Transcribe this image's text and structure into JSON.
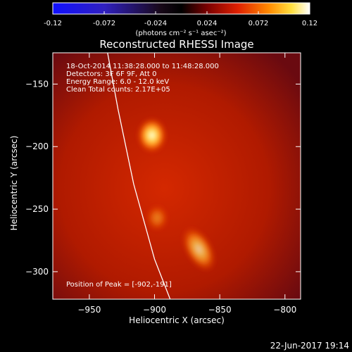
{
  "chart_data": {
    "type": "heatmap",
    "title": "Reconstructed RHESSI Image",
    "xlabel": "Heliocentric X (arcsec)",
    "ylabel": "Heliocentric Y (arcsec)",
    "xlim": [
      -978,
      -788
    ],
    "ylim": [
      -322,
      -125
    ],
    "x_ticks": [
      -950,
      -900,
      -850,
      -800
    ],
    "y_ticks": [
      -150,
      -200,
      -250,
      -300
    ],
    "colorbar": {
      "range": [
        -0.12,
        0.12
      ],
      "ticks": [
        "-0.12",
        "-0.072",
        "-0.024",
        "0.024",
        "0.072",
        "0.12"
      ],
      "label": "(photons cm⁻² s⁻¹ asec⁻²)",
      "colormap": "blue-black-red-yellow-white"
    },
    "sources": [
      {
        "x": -902,
        "y": -191,
        "level": 1.0
      },
      {
        "x": -898,
        "y": -257,
        "level": 0.55
      },
      {
        "x": -866,
        "y": -282,
        "level": 0.75
      }
    ],
    "limb_curve": [
      [
        -936,
        -125
      ],
      [
        -928,
        -170
      ],
      [
        -916,
        -230
      ],
      [
        -900,
        -290
      ],
      [
        -888,
        -322
      ]
    ],
    "info_lines": [
      "18-Oct-2014 11:38:28.000 to 11:48:28.000",
      "Detectors: 3F 6F 9F, Att 0",
      "Energy Range: 6.0 - 12.0 keV",
      "Clean    Total counts: 2.17E+05"
    ],
    "peak_text": "Position of Peak = [-902,-191]",
    "timestamp": "22-Jun-2017 19:14"
  }
}
